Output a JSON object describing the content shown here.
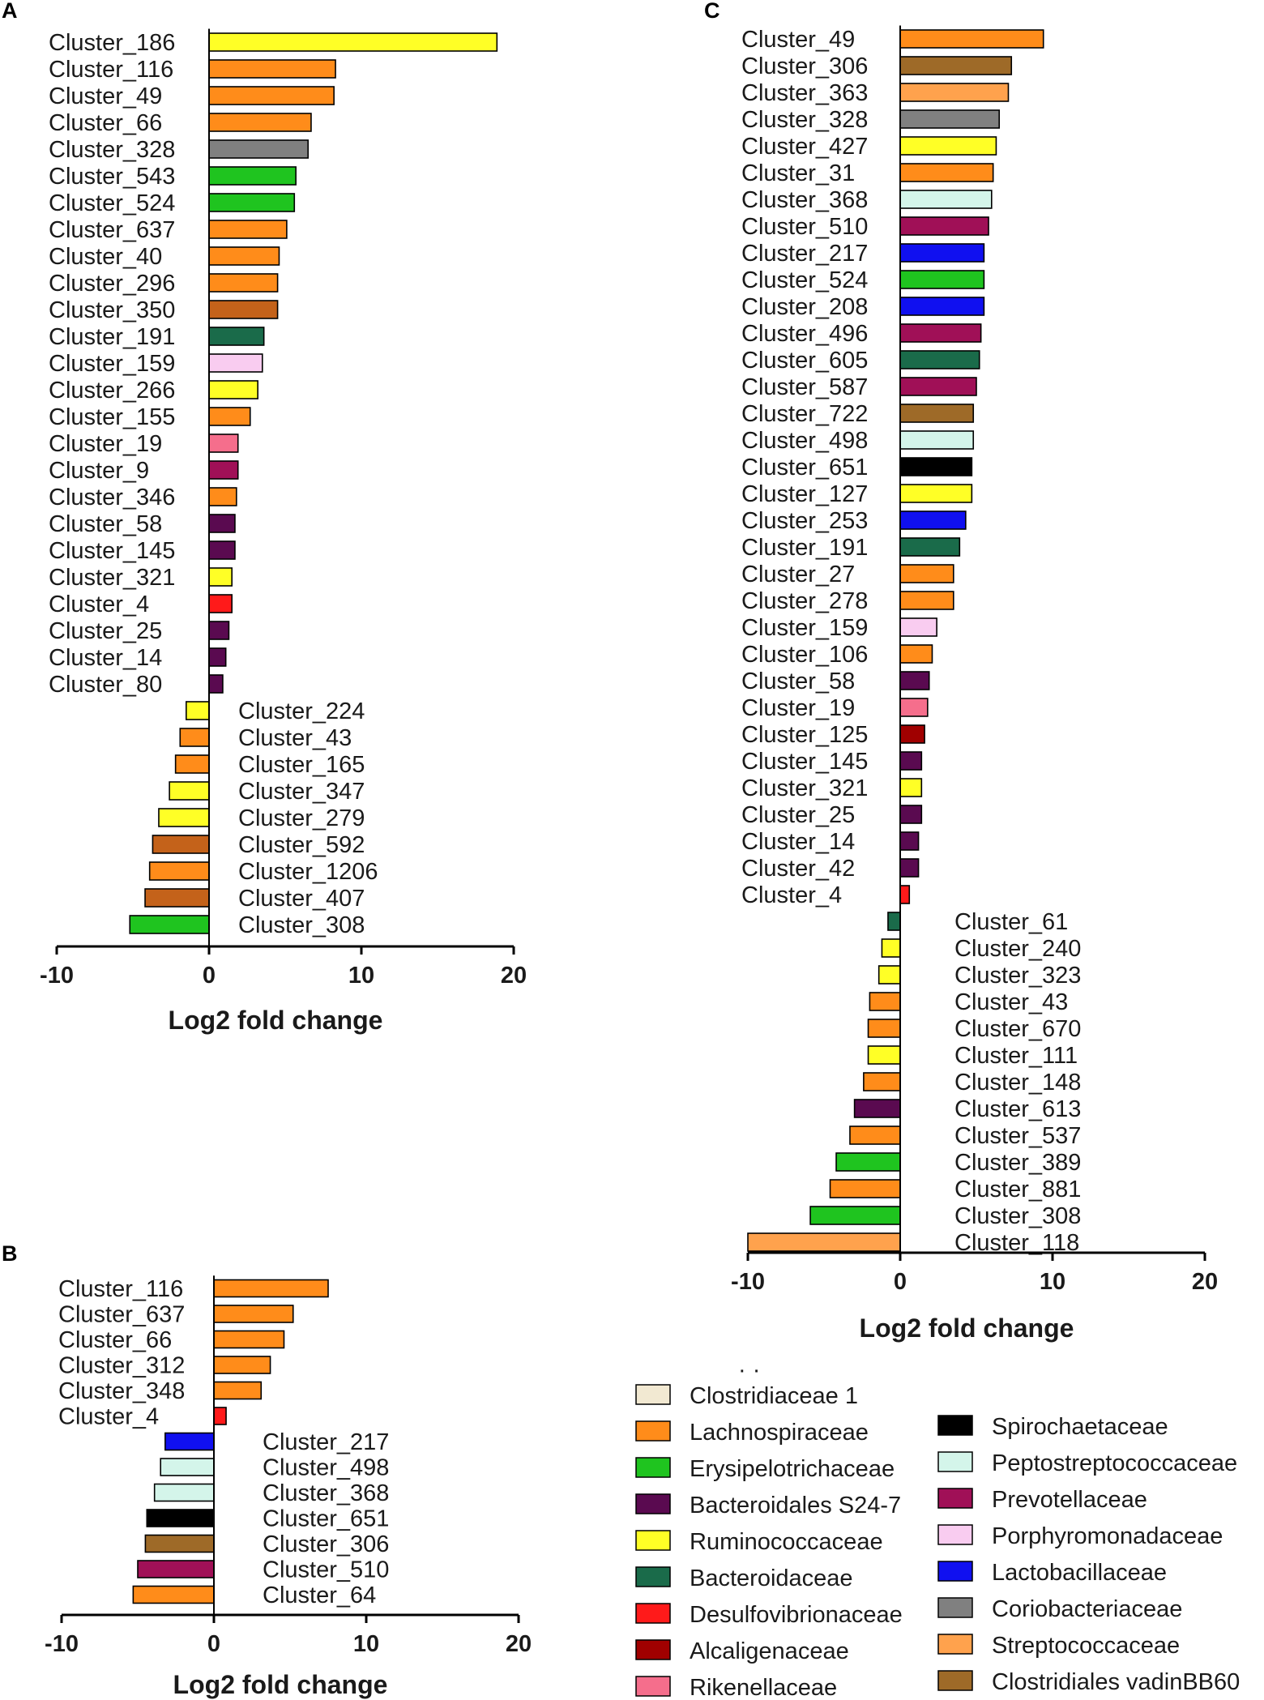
{
  "colors": {
    "Clostridiaceae 1": "#f2e9d2",
    "Lachnospiraceae": "#ff8c1a",
    "Erysipelotrichaceae": "#1fc41f",
    "Bacteroidales S24-7": "#5a0a50",
    "Ruminococcaceae": "#ffff26",
    "Bacteroidaceae": "#1a6b4a",
    "Desulfovibrionaceae": "#ff1a1a",
    "Alcaligenaceae": "#a00000",
    "Rikenellaceae": "#f56e8c",
    "Spirochaetaceae": "#000000",
    "Peptostreptococcaceae": "#d4f5ea",
    "Prevotellaceae": "#a01057",
    "Porphyromonadaceae": "#f9ccf0",
    "Lactobacillaceae": "#1010f0",
    "Coriobacteriaceae": "#808080",
    "Streptococcaceae": "#ffa24d",
    "Clostridiales vadinBB60": "#9e6a28",
    "Unclassified_brown": "#c4621a"
  },
  "legend": {
    "left": [
      "Clostridiaceae 1",
      "Lachnospiraceae",
      "Erysipelotrichaceae",
      "Bacteroidales S24-7",
      "Ruminococcaceae",
      "Bacteroidaceae",
      "Desulfovibrionaceae",
      "Alcaligenaceae",
      "Rikenellaceae"
    ],
    "right": [
      "Spirochaetaceae",
      "Peptostreptococcaceae",
      "Prevotellaceae",
      "Porphyromonadaceae",
      "Lactobacillaceae",
      "Coriobacteriaceae",
      "Streptococcaceae",
      "Clostridiales vadinBB60"
    ]
  },
  "chart_data": [
    {
      "panel": "A",
      "type": "bar",
      "orientation": "horizontal",
      "xlabel": "Log2 fold change",
      "xlim": [
        -10,
        20
      ],
      "xticks": [
        "-10",
        "0",
        "10",
        "20"
      ],
      "bars": [
        {
          "label": "Cluster_186",
          "value": 18.9,
          "family": "Ruminococcaceae"
        },
        {
          "label": "Cluster_116",
          "value": 8.3,
          "family": "Lachnospiraceae"
        },
        {
          "label": "Cluster_49",
          "value": 8.2,
          "family": "Lachnospiraceae"
        },
        {
          "label": "Cluster_66",
          "value": 6.7,
          "family": "Lachnospiraceae"
        },
        {
          "label": "Cluster_328",
          "value": 6.5,
          "family": "Coriobacteriaceae"
        },
        {
          "label": "Cluster_543",
          "value": 5.7,
          "family": "Erysipelotrichaceae"
        },
        {
          "label": "Cluster_524",
          "value": 5.6,
          "family": "Erysipelotrichaceae"
        },
        {
          "label": "Cluster_637",
          "value": 5.1,
          "family": "Lachnospiraceae"
        },
        {
          "label": "Cluster_40",
          "value": 4.6,
          "family": "Lachnospiraceae"
        },
        {
          "label": "Cluster_296",
          "value": 4.5,
          "family": "Lachnospiraceae"
        },
        {
          "label": "Cluster_350",
          "value": 4.5,
          "family": "Unclassified_brown"
        },
        {
          "label": "Cluster_191",
          "value": 3.6,
          "family": "Bacteroidaceae"
        },
        {
          "label": "Cluster_159",
          "value": 3.5,
          "family": "Porphyromonadaceae"
        },
        {
          "label": "Cluster_266",
          "value": 3.2,
          "family": "Ruminococcaceae"
        },
        {
          "label": "Cluster_155",
          "value": 2.7,
          "family": "Lachnospiraceae"
        },
        {
          "label": "Cluster_19",
          "value": 1.9,
          "family": "Rikenellaceae"
        },
        {
          "label": "Cluster_9",
          "value": 1.9,
          "family": "Prevotellaceae"
        },
        {
          "label": "Cluster_346",
          "value": 1.8,
          "family": "Lachnospiraceae"
        },
        {
          "label": "Cluster_58",
          "value": 1.7,
          "family": "Bacteroidales S24-7"
        },
        {
          "label": "Cluster_145",
          "value": 1.7,
          "family": "Bacteroidales S24-7"
        },
        {
          "label": "Cluster_321",
          "value": 1.5,
          "family": "Ruminococcaceae"
        },
        {
          "label": "Cluster_4",
          "value": 1.5,
          "family": "Desulfovibrionaceae"
        },
        {
          "label": "Cluster_25",
          "value": 1.3,
          "family": "Bacteroidales S24-7"
        },
        {
          "label": "Cluster_14",
          "value": 1.1,
          "family": "Bacteroidales S24-7"
        },
        {
          "label": "Cluster_80",
          "value": 0.9,
          "family": "Bacteroidales S24-7"
        },
        {
          "label": "Cluster_224",
          "value": -1.5,
          "family": "Ruminococcaceae"
        },
        {
          "label": "Cluster_43",
          "value": -1.9,
          "family": "Lachnospiraceae"
        },
        {
          "label": "Cluster_165",
          "value": -2.2,
          "family": "Lachnospiraceae"
        },
        {
          "label": "Cluster_347",
          "value": -2.6,
          "family": "Ruminococcaceae"
        },
        {
          "label": "Cluster_279",
          "value": -3.3,
          "family": "Ruminococcaceae"
        },
        {
          "label": "Cluster_592",
          "value": -3.7,
          "family": "Unclassified_brown"
        },
        {
          "label": "Cluster_1206",
          "value": -3.9,
          "family": "Lachnospiraceae"
        },
        {
          "label": "Cluster_407",
          "value": -4.2,
          "family": "Unclassified_brown"
        },
        {
          "label": "Cluster_308",
          "value": -5.2,
          "family": "Erysipelotrichaceae"
        }
      ]
    },
    {
      "panel": "B",
      "type": "bar",
      "orientation": "horizontal",
      "xlabel": "Log2 fold change",
      "xlim": [
        -10,
        20
      ],
      "xticks": [
        "-10",
        "0",
        "10",
        "20"
      ],
      "bars": [
        {
          "label": "Cluster_116",
          "value": 7.5,
          "family": "Lachnospiraceae"
        },
        {
          "label": "Cluster_637",
          "value": 5.2,
          "family": "Lachnospiraceae"
        },
        {
          "label": "Cluster_66",
          "value": 4.6,
          "family": "Lachnospiraceae"
        },
        {
          "label": "Cluster_312",
          "value": 3.7,
          "family": "Lachnospiraceae"
        },
        {
          "label": "Cluster_348",
          "value": 3.1,
          "family": "Lachnospiraceae"
        },
        {
          "label": "Cluster_4",
          "value": 0.8,
          "family": "Desulfovibrionaceae"
        },
        {
          "label": "Cluster_217",
          "value": -3.2,
          "family": "Lactobacillaceae"
        },
        {
          "label": "Cluster_498",
          "value": -3.5,
          "family": "Peptostreptococcaceae"
        },
        {
          "label": "Cluster_368",
          "value": -3.9,
          "family": "Peptostreptococcaceae"
        },
        {
          "label": "Cluster_651",
          "value": -4.4,
          "family": "Spirochaetaceae"
        },
        {
          "label": "Cluster_306",
          "value": -4.5,
          "family": "Clostridiales vadinBB60"
        },
        {
          "label": "Cluster_510",
          "value": -5.0,
          "family": "Prevotellaceae"
        },
        {
          "label": "Cluster_64",
          "value": -5.3,
          "family": "Lachnospiraceae"
        }
      ]
    },
    {
      "panel": "C",
      "type": "bar",
      "orientation": "horizontal",
      "xlabel": "Log2 fold change",
      "xlim": [
        -10,
        20
      ],
      "xticks": [
        "-10",
        "0",
        "10",
        "20"
      ],
      "bars": [
        {
          "label": "Cluster_49",
          "value": 9.4,
          "family": "Lachnospiraceae"
        },
        {
          "label": "Cluster_306",
          "value": 7.3,
          "family": "Clostridiales vadinBB60"
        },
        {
          "label": "Cluster_363",
          "value": 7.1,
          "family": "Streptococcaceae"
        },
        {
          "label": "Cluster_328",
          "value": 6.5,
          "family": "Coriobacteriaceae"
        },
        {
          "label": "Cluster_427",
          "value": 6.3,
          "family": "Ruminococcaceae"
        },
        {
          "label": "Cluster_31",
          "value": 6.1,
          "family": "Lachnospiraceae"
        },
        {
          "label": "Cluster_368",
          "value": 6.0,
          "family": "Peptostreptococcaceae"
        },
        {
          "label": "Cluster_510",
          "value": 5.8,
          "family": "Prevotellaceae"
        },
        {
          "label": "Cluster_217",
          "value": 5.5,
          "family": "Lactobacillaceae"
        },
        {
          "label": "Cluster_524",
          "value": 5.5,
          "family": "Erysipelotrichaceae"
        },
        {
          "label": "Cluster_208",
          "value": 5.5,
          "family": "Lactobacillaceae"
        },
        {
          "label": "Cluster_496",
          "value": 5.3,
          "family": "Prevotellaceae"
        },
        {
          "label": "Cluster_605",
          "value": 5.2,
          "family": "Bacteroidaceae"
        },
        {
          "label": "Cluster_587",
          "value": 5.0,
          "family": "Prevotellaceae"
        },
        {
          "label": "Cluster_722",
          "value": 4.8,
          "family": "Clostridiales vadinBB60"
        },
        {
          "label": "Cluster_498",
          "value": 4.8,
          "family": "Peptostreptococcaceae"
        },
        {
          "label": "Cluster_651",
          "value": 4.7,
          "family": "Spirochaetaceae"
        },
        {
          "label": "Cluster_127",
          "value": 4.7,
          "family": "Ruminococcaceae"
        },
        {
          "label": "Cluster_253",
          "value": 4.3,
          "family": "Lactobacillaceae"
        },
        {
          "label": "Cluster_191",
          "value": 3.9,
          "family": "Bacteroidaceae"
        },
        {
          "label": "Cluster_27",
          "value": 3.5,
          "family": "Lachnospiraceae"
        },
        {
          "label": "Cluster_278",
          "value": 3.5,
          "family": "Lachnospiraceae"
        },
        {
          "label": "Cluster_159",
          "value": 2.4,
          "family": "Porphyromonadaceae"
        },
        {
          "label": "Cluster_106",
          "value": 2.1,
          "family": "Lachnospiraceae"
        },
        {
          "label": "Cluster_58",
          "value": 1.9,
          "family": "Bacteroidales S24-7"
        },
        {
          "label": "Cluster_19",
          "value": 1.8,
          "family": "Rikenellaceae"
        },
        {
          "label": "Cluster_125",
          "value": 1.6,
          "family": "Alcaligenaceae"
        },
        {
          "label": "Cluster_145",
          "value": 1.4,
          "family": "Bacteroidales S24-7"
        },
        {
          "label": "Cluster_321",
          "value": 1.4,
          "family": "Ruminococcaceae"
        },
        {
          "label": "Cluster_25",
          "value": 1.4,
          "family": "Bacteroidales S24-7"
        },
        {
          "label": "Cluster_14",
          "value": 1.2,
          "family": "Bacteroidales S24-7"
        },
        {
          "label": "Cluster_42",
          "value": 1.2,
          "family": "Bacteroidales S24-7"
        },
        {
          "label": "Cluster_4",
          "value": 0.6,
          "family": "Desulfovibrionaceae"
        },
        {
          "label": "Cluster_61",
          "value": -0.8,
          "family": "Bacteroidaceae"
        },
        {
          "label": "Cluster_240",
          "value": -1.2,
          "family": "Ruminococcaceae"
        },
        {
          "label": "Cluster_323",
          "value": -1.4,
          "family": "Ruminococcaceae"
        },
        {
          "label": "Cluster_43",
          "value": -2.0,
          "family": "Lachnospiraceae"
        },
        {
          "label": "Cluster_670",
          "value": -2.1,
          "family": "Lachnospiraceae"
        },
        {
          "label": "Cluster_111",
          "value": -2.1,
          "family": "Ruminococcaceae"
        },
        {
          "label": "Cluster_148",
          "value": -2.4,
          "family": "Lachnospiraceae"
        },
        {
          "label": "Cluster_613",
          "value": -3.0,
          "family": "Bacteroidales S24-7"
        },
        {
          "label": "Cluster_537",
          "value": -3.3,
          "family": "Lachnospiraceae"
        },
        {
          "label": "Cluster_389",
          "value": -4.2,
          "family": "Erysipelotrichaceae"
        },
        {
          "label": "Cluster_881",
          "value": -4.6,
          "family": "Lachnospiraceae"
        },
        {
          "label": "Cluster_308",
          "value": -5.9,
          "family": "Erysipelotrichaceae"
        },
        {
          "label": "Cluster_118",
          "value": -10.0,
          "family": "Streptococcaceae"
        }
      ]
    }
  ]
}
